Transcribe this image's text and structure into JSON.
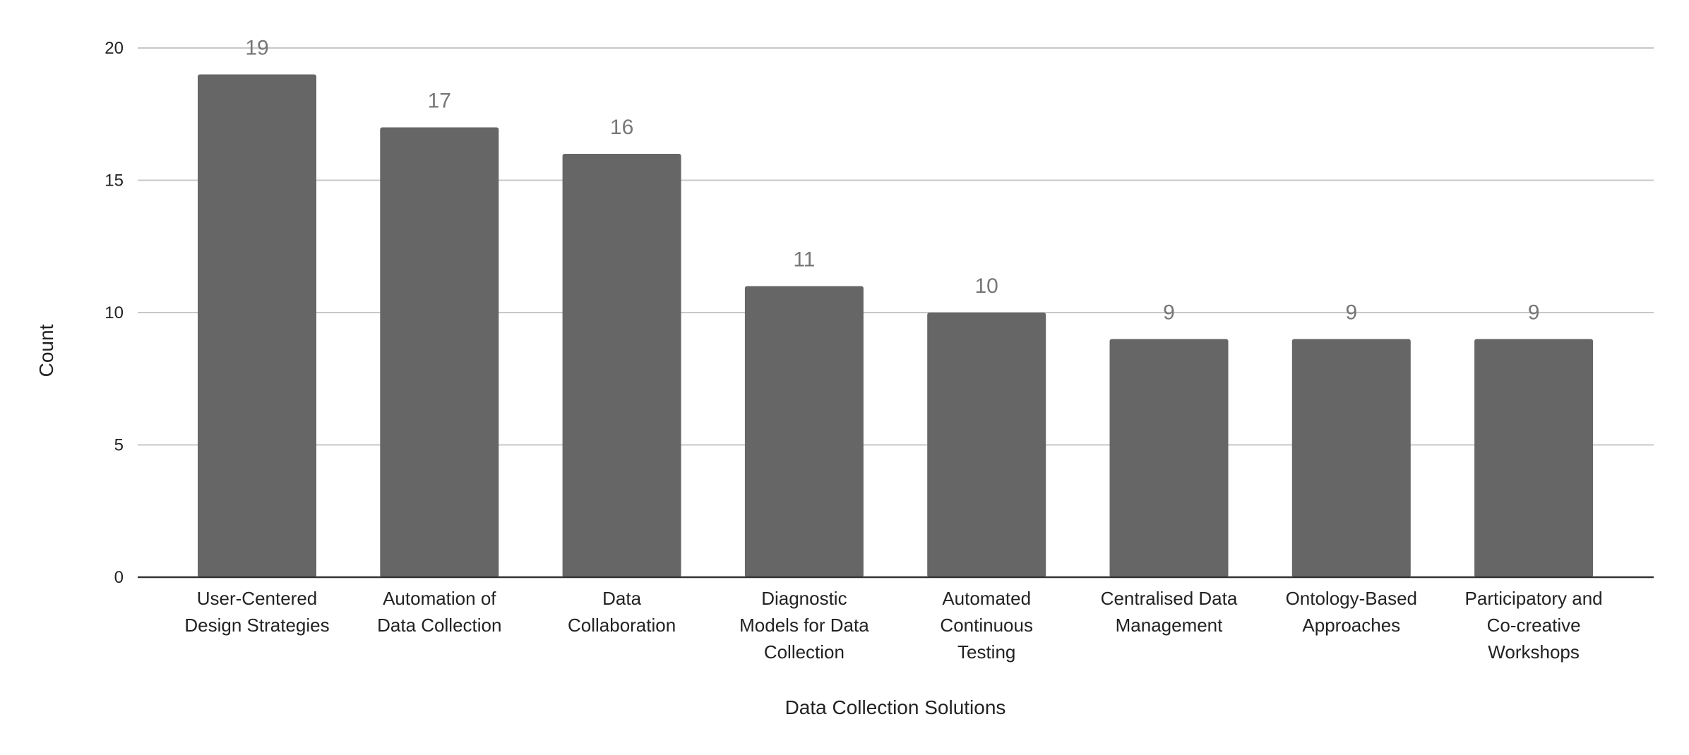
{
  "chart_data": {
    "type": "bar",
    "title": "",
    "xlabel": "Data Collection Solutions",
    "ylabel": "Count",
    "ylim": [
      0,
      20
    ],
    "yticks": [
      0,
      5,
      10,
      15,
      20
    ],
    "grid": true,
    "legend": "none",
    "bar_color": "#666666",
    "categories": [
      [
        "User-Centered",
        "Design Strategies"
      ],
      [
        "Automation of",
        "Data Collection"
      ],
      [
        "Data",
        "Collaboration"
      ],
      [
        "Diagnostic",
        "Models for Data",
        "Collection"
      ],
      [
        "Automated",
        "Continuous",
        "Testing"
      ],
      [
        "Centralised Data",
        "Management"
      ],
      [
        "Ontology-Based",
        "Approaches"
      ],
      [
        "Participatory and",
        "Co-creative",
        "Workshops"
      ]
    ],
    "values": [
      19,
      17,
      16,
      11,
      10,
      9,
      9,
      9
    ]
  }
}
